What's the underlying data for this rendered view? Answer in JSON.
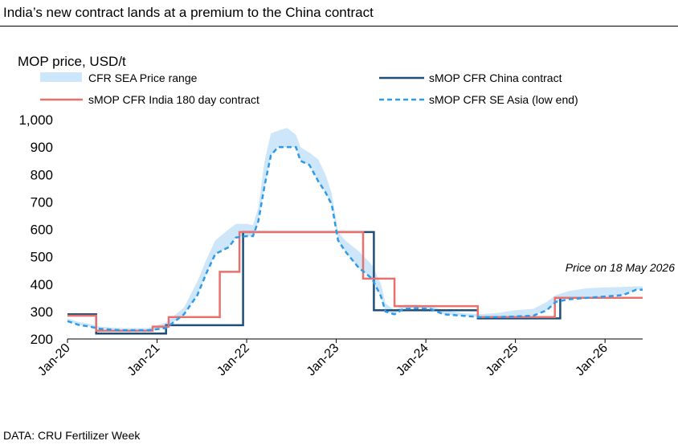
{
  "header": {
    "title": "India’s new contract lands at a premium to the China contract"
  },
  "footer": {
    "source": "DATA: CRU Fertilizer Week"
  },
  "colors": {
    "china": "#1f4e79",
    "india": "#e8716d",
    "sea_low": "#2e9bea",
    "sea_range": "#cde6fa"
  },
  "chart_data": {
    "type": "line",
    "title": "India’s new contract lands at a premium to the China contract",
    "ylabel": "MOP price, USD/t",
    "xlabel": "",
    "ylim": [
      200,
      1000
    ],
    "yticks": [
      "200",
      "300",
      "400",
      "500",
      "600",
      "700",
      "800",
      "900",
      "1,000"
    ],
    "xticks": [
      "Jan-20",
      "Jan-21",
      "Jan-22",
      "Jan-23",
      "Jan-24",
      "Jan-25",
      "Jan-26"
    ],
    "x_unit": "year",
    "xlim": [
      2020.0,
      2026.42
    ],
    "grid": false,
    "legend_placement": "top",
    "annotation": "Price on 18 May 2026",
    "legend": [
      {
        "key": "range",
        "label": "CFR SEA Price range"
      },
      {
        "key": "china",
        "label": "sMOP CFR China contract"
      },
      {
        "key": "india",
        "label": "sMOP CFR India 180 day contract"
      },
      {
        "key": "sea_low",
        "label": "sMOP CFR SE Asia (low end)"
      }
    ],
    "series": [
      {
        "name": "sMOP CFR China contract",
        "points": [
          [
            2020.0,
            290
          ],
          [
            2020.32,
            290
          ],
          [
            2020.32,
            220
          ],
          [
            2021.1,
            220
          ],
          [
            2021.1,
            250
          ],
          [
            2021.96,
            250
          ],
          [
            2021.96,
            590
          ],
          [
            2023.42,
            590
          ],
          [
            2023.42,
            305
          ],
          [
            2024.58,
            305
          ],
          [
            2024.58,
            275
          ],
          [
            2025.5,
            275
          ],
          [
            2025.5,
            350
          ],
          [
            2026.42,
            350
          ]
        ]
      },
      {
        "name": "sMOP CFR India 180 day contract",
        "points": [
          [
            2020.0,
            285
          ],
          [
            2020.32,
            285
          ],
          [
            2020.32,
            230
          ],
          [
            2020.95,
            230
          ],
          [
            2020.95,
            245
          ],
          [
            2021.13,
            245
          ],
          [
            2021.13,
            280
          ],
          [
            2021.7,
            280
          ],
          [
            2021.7,
            445
          ],
          [
            2021.92,
            445
          ],
          [
            2021.92,
            590
          ],
          [
            2023.3,
            590
          ],
          [
            2023.3,
            420
          ],
          [
            2023.65,
            420
          ],
          [
            2023.65,
            320
          ],
          [
            2024.58,
            320
          ],
          [
            2024.58,
            280
          ],
          [
            2025.44,
            280
          ],
          [
            2025.44,
            350
          ],
          [
            2026.42,
            350
          ]
        ]
      },
      {
        "name": "sMOP CFR SE Asia (low end)",
        "points": [
          [
            2020.0,
            265
          ],
          [
            2020.12,
            252
          ],
          [
            2020.25,
            245
          ],
          [
            2020.36,
            237
          ],
          [
            2020.6,
            232
          ],
          [
            2020.9,
            232
          ],
          [
            2021.1,
            240
          ],
          [
            2021.3,
            290
          ],
          [
            2021.45,
            360
          ],
          [
            2021.55,
            440
          ],
          [
            2021.65,
            510
          ],
          [
            2021.8,
            535
          ],
          [
            2021.88,
            570
          ],
          [
            2022.0,
            575
          ],
          [
            2022.07,
            575
          ],
          [
            2022.13,
            630
          ],
          [
            2022.2,
            760
          ],
          [
            2022.27,
            870
          ],
          [
            2022.35,
            900
          ],
          [
            2022.55,
            900
          ],
          [
            2022.6,
            850
          ],
          [
            2022.7,
            835
          ],
          [
            2022.8,
            775
          ],
          [
            2022.88,
            735
          ],
          [
            2022.95,
            690
          ],
          [
            2023.02,
            560
          ],
          [
            2023.1,
            520
          ],
          [
            2023.25,
            460
          ],
          [
            2023.4,
            420
          ],
          [
            2023.5,
            355
          ],
          [
            2023.55,
            300
          ],
          [
            2023.65,
            290
          ],
          [
            2023.75,
            310
          ],
          [
            2023.9,
            312
          ],
          [
            2024.05,
            310
          ],
          [
            2024.2,
            290
          ],
          [
            2024.4,
            285
          ],
          [
            2024.6,
            280
          ],
          [
            2024.8,
            280
          ],
          [
            2025.0,
            282
          ],
          [
            2025.2,
            285
          ],
          [
            2025.35,
            305
          ],
          [
            2025.45,
            335
          ],
          [
            2025.6,
            345
          ],
          [
            2025.8,
            350
          ],
          [
            2026.0,
            355
          ],
          [
            2026.2,
            360
          ],
          [
            2026.35,
            380
          ],
          [
            2026.42,
            380
          ]
        ]
      },
      {
        "name": "CFR SEA Price range",
        "low": [
          [
            2020.0,
            265
          ],
          [
            2020.12,
            252
          ],
          [
            2020.25,
            245
          ],
          [
            2020.36,
            237
          ],
          [
            2020.6,
            232
          ],
          [
            2020.9,
            232
          ],
          [
            2021.1,
            240
          ],
          [
            2021.3,
            290
          ],
          [
            2021.45,
            360
          ],
          [
            2021.55,
            440
          ],
          [
            2021.65,
            510
          ],
          [
            2021.8,
            535
          ],
          [
            2021.88,
            570
          ],
          [
            2022.0,
            575
          ],
          [
            2022.07,
            575
          ],
          [
            2022.13,
            630
          ],
          [
            2022.2,
            760
          ],
          [
            2022.27,
            870
          ],
          [
            2022.35,
            900
          ],
          [
            2022.55,
            900
          ],
          [
            2022.6,
            850
          ],
          [
            2022.7,
            835
          ],
          [
            2022.8,
            775
          ],
          [
            2022.88,
            735
          ],
          [
            2022.95,
            690
          ],
          [
            2023.02,
            560
          ],
          [
            2023.1,
            520
          ],
          [
            2023.25,
            460
          ],
          [
            2023.4,
            420
          ],
          [
            2023.5,
            355
          ],
          [
            2023.55,
            300
          ],
          [
            2023.65,
            290
          ],
          [
            2023.75,
            310
          ],
          [
            2023.9,
            312
          ],
          [
            2024.05,
            310
          ],
          [
            2024.2,
            290
          ],
          [
            2024.4,
            285
          ],
          [
            2024.6,
            280
          ],
          [
            2024.8,
            280
          ],
          [
            2025.0,
            282
          ],
          [
            2025.2,
            285
          ],
          [
            2025.35,
            305
          ],
          [
            2025.45,
            335
          ],
          [
            2025.6,
            345
          ],
          [
            2025.8,
            350
          ],
          [
            2026.0,
            355
          ],
          [
            2026.2,
            360
          ],
          [
            2026.35,
            380
          ],
          [
            2026.42,
            380
          ]
        ],
        "high": [
          [
            2020.0,
            275
          ],
          [
            2020.12,
            262
          ],
          [
            2020.25,
            255
          ],
          [
            2020.36,
            245
          ],
          [
            2020.6,
            240
          ],
          [
            2020.9,
            240
          ],
          [
            2021.1,
            260
          ],
          [
            2021.3,
            315
          ],
          [
            2021.45,
            410
          ],
          [
            2021.55,
            490
          ],
          [
            2021.65,
            560
          ],
          [
            2021.8,
            600
          ],
          [
            2021.88,
            620
          ],
          [
            2022.0,
            620
          ],
          [
            2022.07,
            615
          ],
          [
            2022.13,
            680
          ],
          [
            2022.2,
            850
          ],
          [
            2022.27,
            950
          ],
          [
            2022.35,
            960
          ],
          [
            2022.45,
            970
          ],
          [
            2022.55,
            945
          ],
          [
            2022.6,
            900
          ],
          [
            2022.7,
            880
          ],
          [
            2022.8,
            855
          ],
          [
            2022.88,
            800
          ],
          [
            2022.95,
            730
          ],
          [
            2023.02,
            590
          ],
          [
            2023.1,
            560
          ],
          [
            2023.25,
            520
          ],
          [
            2023.4,
            470
          ],
          [
            2023.5,
            400
          ],
          [
            2023.55,
            330
          ],
          [
            2023.65,
            305
          ],
          [
            2023.75,
            325
          ],
          [
            2023.9,
            325
          ],
          [
            2024.05,
            320
          ],
          [
            2024.2,
            305
          ],
          [
            2024.4,
            295
          ],
          [
            2024.6,
            290
          ],
          [
            2024.8,
            295
          ],
          [
            2025.0,
            305
          ],
          [
            2025.2,
            310
          ],
          [
            2025.35,
            335
          ],
          [
            2025.45,
            360
          ],
          [
            2025.6,
            375
          ],
          [
            2025.8,
            385
          ],
          [
            2026.0,
            388
          ],
          [
            2026.2,
            390
          ],
          [
            2026.35,
            392
          ],
          [
            2026.42,
            392
          ]
        ]
      }
    ]
  }
}
